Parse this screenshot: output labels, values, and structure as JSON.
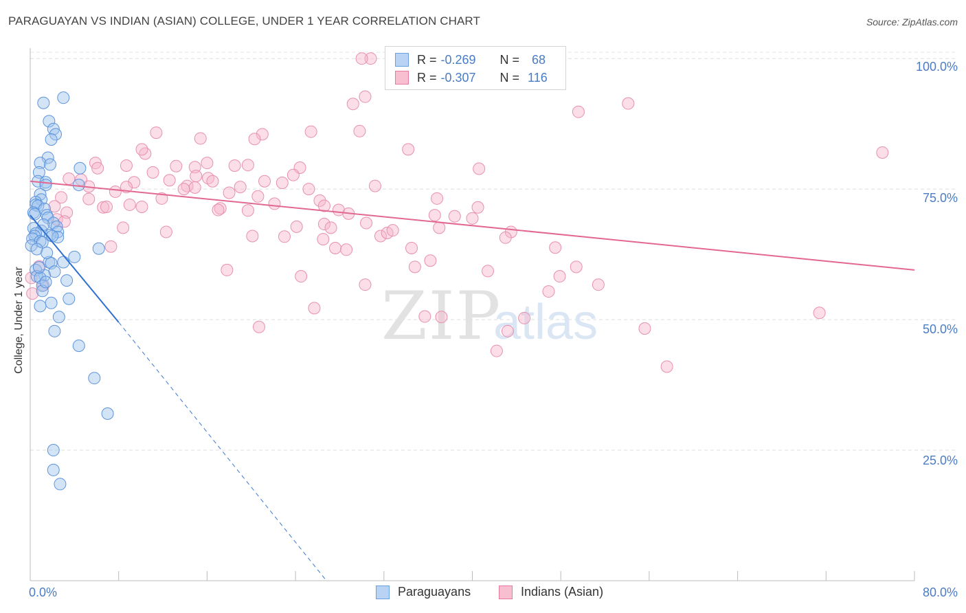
{
  "header": {
    "title": "PARAGUAYAN VS INDIAN (ASIAN) COLLEGE, UNDER 1 YEAR CORRELATION CHART",
    "source": "Source: ZipAtlas.com"
  },
  "watermark": {
    "zip": "ZIP",
    "atlas": "atlas"
  },
  "legend": {
    "r_label": "R =",
    "n_label": "N =",
    "series": [
      {
        "name": "Paraguayans",
        "r": "-0.269",
        "n": "68",
        "color": "#6a9fe0",
        "fill": "#b9d3f5"
      },
      {
        "name": "Indians (Asian)",
        "r": "-0.307",
        "n": "116",
        "color": "#e8799d",
        "fill": "#f7bfd0"
      }
    ]
  },
  "chart_data": {
    "type": "scatter",
    "title": "PARAGUAYAN VS INDIAN (ASIAN) COLLEGE, UNDER 1 YEAR CORRELATION CHART",
    "xlabel": "",
    "ylabel": "College, Under 1 year",
    "x_tick_labels": {
      "min": "0.0%",
      "max": "80.0%"
    },
    "y_tick_labels": [
      "100.0%",
      "75.0%",
      "50.0%",
      "25.0%"
    ],
    "xlim": [
      0,
      80
    ],
    "ylim": [
      0,
      102
    ],
    "grid": true,
    "series": [
      {
        "name": "Paraguayans",
        "color": "#3a78d4",
        "points": [
          [
            1.2,
            91.5
          ],
          [
            3.0,
            92.5
          ],
          [
            1.7,
            88.0
          ],
          [
            2.1,
            86.5
          ],
          [
            2.3,
            85.5
          ],
          [
            1.9,
            84.5
          ],
          [
            1.6,
            81.0
          ],
          [
            0.9,
            80.0
          ],
          [
            1.8,
            79.7
          ],
          [
            4.5,
            79.0
          ],
          [
            0.8,
            78.2
          ],
          [
            0.7,
            76.5
          ],
          [
            1.4,
            76.3
          ],
          [
            1.4,
            75.8
          ],
          [
            4.4,
            75.8
          ],
          [
            0.9,
            74.0
          ],
          [
            1.0,
            73.0
          ],
          [
            0.5,
            72.5
          ],
          [
            0.5,
            72.0
          ],
          [
            0.7,
            71.8
          ],
          [
            1.3,
            71.2
          ],
          [
            0.3,
            70.5
          ],
          [
            1.5,
            70.0
          ],
          [
            1.6,
            69.5
          ],
          [
            2.1,
            68.5
          ],
          [
            2.4,
            67.8
          ],
          [
            0.3,
            67.5
          ],
          [
            1.0,
            67.0
          ],
          [
            2.5,
            66.8
          ],
          [
            0.5,
            66.5
          ],
          [
            1.8,
            66.2
          ],
          [
            0.4,
            66.0
          ],
          [
            2.5,
            65.8
          ],
          [
            0.2,
            65.5
          ],
          [
            0.9,
            65.0
          ],
          [
            1.1,
            64.8
          ],
          [
            0.1,
            64.2
          ],
          [
            6.2,
            63.6
          ],
          [
            4.0,
            62.0
          ],
          [
            1.7,
            61.0
          ],
          [
            1.9,
            60.8
          ],
          [
            0.5,
            59.5
          ],
          [
            2.2,
            59.2
          ],
          [
            1.3,
            58.5
          ],
          [
            0.6,
            58.3
          ],
          [
            0.9,
            58.0
          ],
          [
            3.3,
            57.5
          ],
          [
            1.1,
            56.5
          ],
          [
            1.1,
            55.5
          ],
          [
            3.5,
            54.0
          ],
          [
            1.9,
            53.2
          ],
          [
            0.9,
            52.6
          ],
          [
            2.6,
            50.5
          ],
          [
            2.2,
            47.8
          ],
          [
            4.4,
            45.0
          ],
          [
            5.8,
            38.8
          ],
          [
            7.0,
            32.0
          ],
          [
            2.1,
            25.0
          ],
          [
            2.1,
            21.2
          ],
          [
            2.7,
            18.5
          ],
          [
            0.4,
            70.2
          ],
          [
            1.2,
            68.2
          ],
          [
            2.0,
            66.0
          ],
          [
            0.6,
            63.5
          ],
          [
            1.5,
            62.8
          ],
          [
            3.0,
            61.0
          ],
          [
            0.8,
            60.0
          ],
          [
            1.4,
            57.2
          ]
        ]
      },
      {
        "name": "Indians (Asian)",
        "color": "#e57a9e",
        "points": [
          [
            30.8,
            100.0
          ],
          [
            30.0,
            100.0
          ],
          [
            30.3,
            92.7
          ],
          [
            29.2,
            91.3
          ],
          [
            49.6,
            89.8
          ],
          [
            54.1,
            91.4
          ],
          [
            11.4,
            85.8
          ],
          [
            15.4,
            84.7
          ],
          [
            21.0,
            85.5
          ],
          [
            20.3,
            84.6
          ],
          [
            25.4,
            86.0
          ],
          [
            29.8,
            86.1
          ],
          [
            34.2,
            82.6
          ],
          [
            77.1,
            82.0
          ],
          [
            10.4,
            81.8
          ],
          [
            10.1,
            82.6
          ],
          [
            5.9,
            80.0
          ],
          [
            6.1,
            79.0
          ],
          [
            8.7,
            79.5
          ],
          [
            13.2,
            79.4
          ],
          [
            14.9,
            79.2
          ],
          [
            16.0,
            80.0
          ],
          [
            18.5,
            79.5
          ],
          [
            19.7,
            79.6
          ],
          [
            24.4,
            79.1
          ],
          [
            40.6,
            78.9
          ],
          [
            11.1,
            78.2
          ],
          [
            23.8,
            77.7
          ],
          [
            3.5,
            77.0
          ],
          [
            4.6,
            76.8
          ],
          [
            12.6,
            76.7
          ],
          [
            16.1,
            77.1
          ],
          [
            16.5,
            76.5
          ],
          [
            9.4,
            76.3
          ],
          [
            21.2,
            76.5
          ],
          [
            22.8,
            76.2
          ],
          [
            14.2,
            75.6
          ],
          [
            14.9,
            75.3
          ],
          [
            8.7,
            75.4
          ],
          [
            13.9,
            75.0
          ],
          [
            19.0,
            75.4
          ],
          [
            25.2,
            75.0
          ],
          [
            31.2,
            75.6
          ],
          [
            5.3,
            75.5
          ],
          [
            7.7,
            74.5
          ],
          [
            18.0,
            74.3
          ],
          [
            2.8,
            73.4
          ],
          [
            5.3,
            73.1
          ],
          [
            11.9,
            73.2
          ],
          [
            20.6,
            73.6
          ],
          [
            26.2,
            72.8
          ],
          [
            36.8,
            73.2
          ],
          [
            22.1,
            72.2
          ],
          [
            2.2,
            71.7
          ],
          [
            6.6,
            71.5
          ],
          [
            6.9,
            71.6
          ],
          [
            10.1,
            71.6
          ],
          [
            17.2,
            71.3
          ],
          [
            19.7,
            70.9
          ],
          [
            26.6,
            71.8
          ],
          [
            27.9,
            71.0
          ],
          [
            40.5,
            71.5
          ],
          [
            17.0,
            71.0
          ],
          [
            3.3,
            70.5
          ],
          [
            28.8,
            70.3
          ],
          [
            36.6,
            70.0
          ],
          [
            38.4,
            69.8
          ],
          [
            2.4,
            69.2
          ],
          [
            3.1,
            68.8
          ],
          [
            24.1,
            67.8
          ],
          [
            26.6,
            68.3
          ],
          [
            30.4,
            68.5
          ],
          [
            37.0,
            67.6
          ],
          [
            40.0,
            69.4
          ],
          [
            8.4,
            67.6
          ],
          [
            27.2,
            67.6
          ],
          [
            43.5,
            66.8
          ],
          [
            12.3,
            66.8
          ],
          [
            20.1,
            66.0
          ],
          [
            23.0,
            65.9
          ],
          [
            31.7,
            66.0
          ],
          [
            32.3,
            66.6
          ],
          [
            32.8,
            67.1
          ],
          [
            43.0,
            65.7
          ],
          [
            26.5,
            65.4
          ],
          [
            27.6,
            63.7
          ],
          [
            28.6,
            63.4
          ],
          [
            34.5,
            63.7
          ],
          [
            47.5,
            63.8
          ],
          [
            7.3,
            64.0
          ],
          [
            36.2,
            61.3
          ],
          [
            34.8,
            60.1
          ],
          [
            41.4,
            59.3
          ],
          [
            49.4,
            60.1
          ],
          [
            17.8,
            59.5
          ],
          [
            24.5,
            58.3
          ],
          [
            47.9,
            58.3
          ],
          [
            30.3,
            56.7
          ],
          [
            46.9,
            55.4
          ],
          [
            51.4,
            56.7
          ],
          [
            0.2,
            55.0
          ],
          [
            0.1,
            58.0
          ],
          [
            25.7,
            52.2
          ],
          [
            35.7,
            50.6
          ],
          [
            37.2,
            50.5
          ],
          [
            44.7,
            50.3
          ],
          [
            71.4,
            51.3
          ],
          [
            20.7,
            48.6
          ],
          [
            43.2,
            47.8
          ],
          [
            55.6,
            48.3
          ],
          [
            42.2,
            44.0
          ],
          [
            57.6,
            41.0
          ],
          [
            1.2,
            56.6
          ],
          [
            0.8,
            60.2
          ],
          [
            15.0,
            77.5
          ],
          [
            9.0,
            72.0
          ]
        ]
      }
    ],
    "trendlines": [
      {
        "series": "Paraguayans",
        "from": [
          0.0,
          70.0
        ],
        "to": [
          8.0,
          49.5
        ],
        "extended_to": [
          26.8,
          0.0
        ],
        "extended_style": "dashed"
      },
      {
        "series": "Indians (Asian)",
        "from": [
          0.0,
          76.5
        ],
        "to": [
          80.0,
          59.5
        ]
      }
    ]
  }
}
